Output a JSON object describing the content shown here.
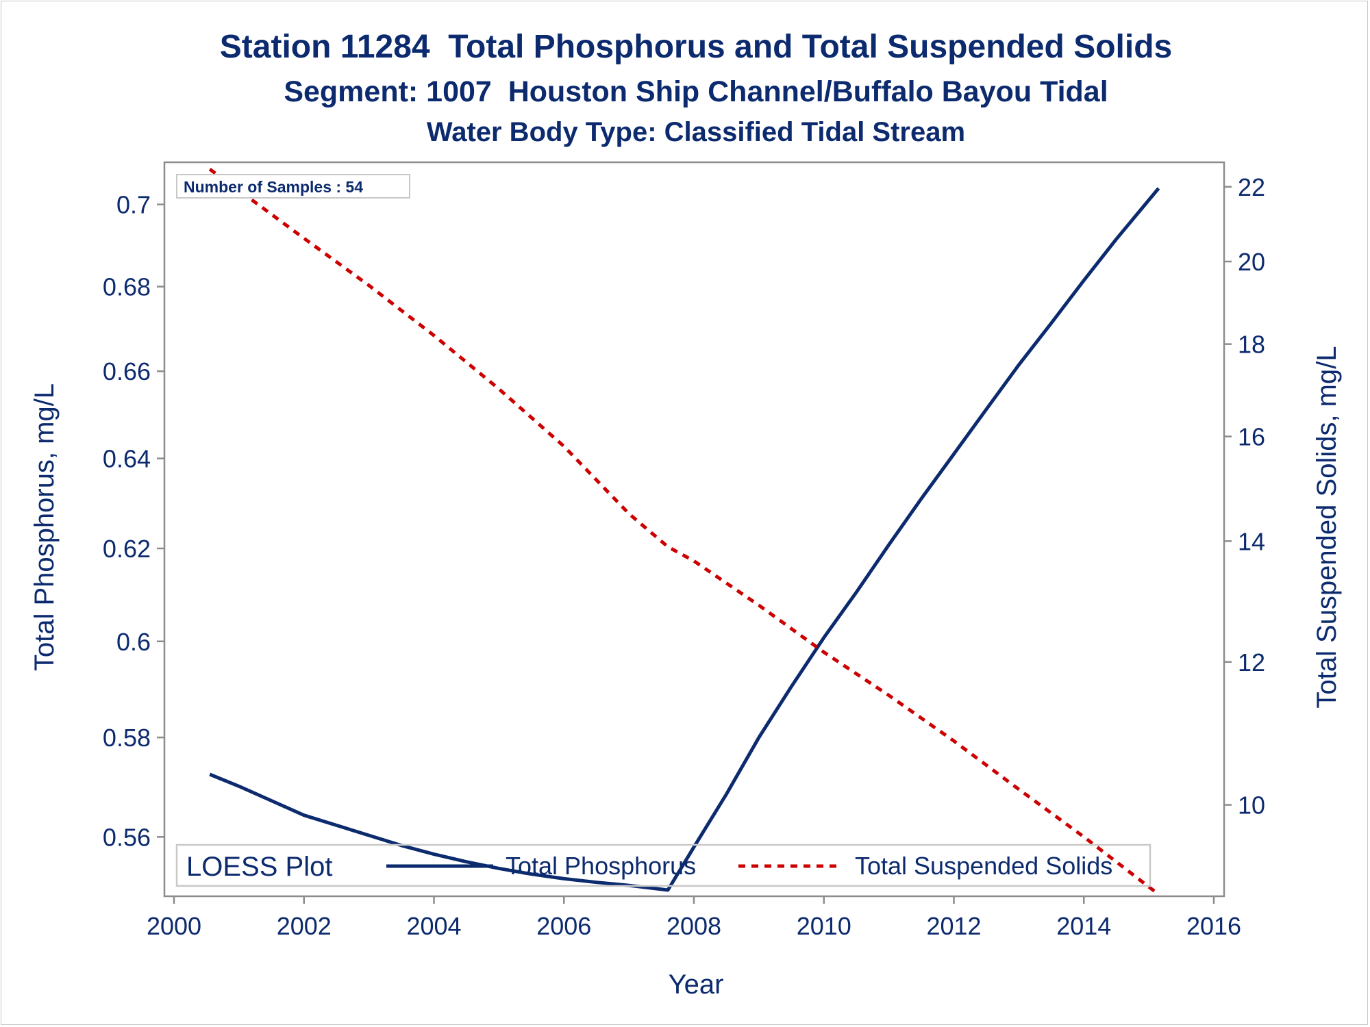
{
  "chart_data": {
    "type": "line",
    "title": "Station 11284  Total Phosphorus and Total Suspended Solids",
    "subtitle": "Segment: 1007  Houston Ship Channel/Buffalo Bayou Tidal",
    "subtitle2": "Water Body Type: Classified Tidal Stream",
    "xlabel": "Year",
    "ylabel_left": "Total Phosphorus, mg/L",
    "ylabel_right": "Total Suspended Solids, mg/L",
    "xlim": [
      2000,
      2016
    ],
    "x_ticks": [
      "2000",
      "2002",
      "2004",
      "2006",
      "2008",
      "2010",
      "2012",
      "2014",
      "2016"
    ],
    "y_left_ticks": [
      "0.56",
      "0.58",
      "0.6",
      "0.62",
      "0.64",
      "0.66",
      "0.68",
      "0.7"
    ],
    "y_right_ticks": [
      "10",
      "12",
      "14",
      "16",
      "18",
      "20",
      "22"
    ],
    "y_left_scale": "log",
    "y_right_scale": "log",
    "y_left_range": [
      0.5484,
      0.7105
    ],
    "y_right_range": [
      8.9,
      22.7
    ],
    "inset_text": "Number of Samples : 54",
    "legend": {
      "title": "LOESS Plot",
      "placement": "bottom-inside"
    },
    "grid": false,
    "series": [
      {
        "name": "Total Phosphorus",
        "axis": "left",
        "color": "#0c2a6e",
        "style": "solid",
        "points": [
          [
            2000.55,
            0.5725
          ],
          [
            2001.0,
            0.5701
          ],
          [
            2001.5,
            0.5672
          ],
          [
            2002.0,
            0.5643
          ],
          [
            2002.5,
            0.5623
          ],
          [
            2003.0,
            0.5603
          ],
          [
            2003.5,
            0.5583
          ],
          [
            2004.0,
            0.5566
          ],
          [
            2004.5,
            0.5551
          ],
          [
            2005.0,
            0.5538
          ],
          [
            2005.5,
            0.5527
          ],
          [
            2006.0,
            0.5518
          ],
          [
            2006.5,
            0.5511
          ],
          [
            2007.0,
            0.5505
          ],
          [
            2007.6,
            0.5496
          ],
          [
            2008.0,
            0.558
          ],
          [
            2008.5,
            0.5685
          ],
          [
            2009.0,
            0.58
          ],
          [
            2009.5,
            0.5905
          ],
          [
            2010.0,
            0.6008
          ],
          [
            2010.5,
            0.6105
          ],
          [
            2011.0,
            0.6208
          ],
          [
            2011.5,
            0.631
          ],
          [
            2012.0,
            0.641
          ],
          [
            2012.5,
            0.6512
          ],
          [
            2013.0,
            0.6615
          ],
          [
            2013.5,
            0.6713
          ],
          [
            2014.0,
            0.6815
          ],
          [
            2014.5,
            0.6915
          ],
          [
            2015.15,
            0.704
          ]
        ]
      },
      {
        "name": "Total Suspended Solids",
        "axis": "right",
        "color": "#cc0000",
        "style": "dashed",
        "points": [
          [
            2000.55,
            22.5
          ],
          [
            2001.0,
            21.9
          ],
          [
            2002.0,
            20.6
          ],
          [
            2003.0,
            19.4
          ],
          [
            2004.0,
            18.2
          ],
          [
            2005.0,
            17.0
          ],
          [
            2006.0,
            15.8
          ],
          [
            2007.0,
            14.5
          ],
          [
            2007.6,
            13.9
          ],
          [
            2008.0,
            13.65
          ],
          [
            2009.0,
            12.9
          ],
          [
            2010.0,
            12.15
          ],
          [
            2011.0,
            11.5
          ],
          [
            2012.0,
            10.85
          ],
          [
            2013.0,
            10.2
          ],
          [
            2014.0,
            9.6
          ],
          [
            2015.1,
            8.95
          ]
        ]
      }
    ]
  }
}
